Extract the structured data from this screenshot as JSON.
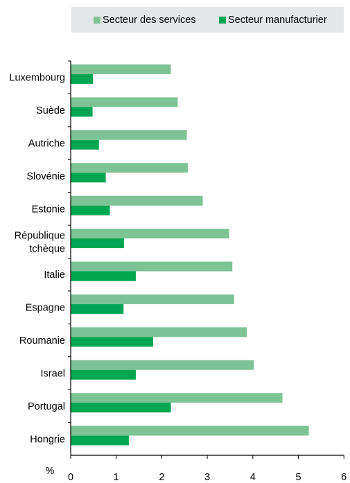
{
  "colors": {
    "services": "#7dc395",
    "manufacturing": "#00a651",
    "legend_bg": "#e4e6e9",
    "axis": "#000000"
  },
  "legend": [
    {
      "label": "Secteur des services",
      "color": "#7dc395"
    },
    {
      "label": "Secteur manufacturier",
      "color": "#00a651"
    }
  ],
  "chart_data": {
    "type": "bar",
    "orientation": "horizontal",
    "categories": [
      [
        "Luxembourg"
      ],
      [
        "Suède"
      ],
      [
        "Autriche"
      ],
      [
        "Slovénie"
      ],
      [
        "Estonie"
      ],
      [
        "République",
        "tchèque"
      ],
      [
        "Italie"
      ],
      [
        "Espagne"
      ],
      [
        "Roumanie"
      ],
      [
        "Israel"
      ],
      [
        "Portugal"
      ],
      [
        "Hongrie"
      ]
    ],
    "series": [
      {
        "name": "Secteur des services",
        "color": "#7dc395",
        "values": [
          2.2,
          2.35,
          2.55,
          2.57,
          2.9,
          3.48,
          3.55,
          3.59,
          3.87,
          4.02,
          4.65,
          5.23
        ]
      },
      {
        "name": "Secteur manufacturier",
        "color": "#00a651",
        "values": [
          0.49,
          0.48,
          0.62,
          0.77,
          0.86,
          1.17,
          1.43,
          1.16,
          1.81,
          1.43,
          2.2,
          1.28
        ]
      }
    ],
    "xlabel": "%",
    "xlim": [
      0,
      6
    ],
    "xticks": [
      0,
      1,
      2,
      3,
      4,
      5,
      6
    ],
    "grid": false,
    "legend_position": "top"
  }
}
